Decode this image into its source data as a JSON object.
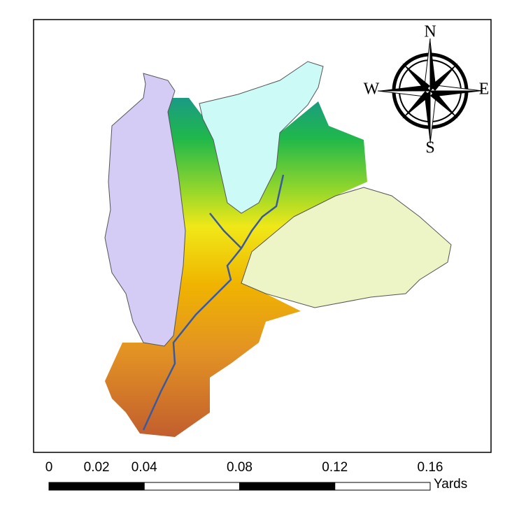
{
  "compass": {
    "north": "N",
    "south": "S",
    "east": "E",
    "west": "W"
  },
  "scale_bar": {
    "ticks": [
      0,
      0.02,
      0.04,
      0.08,
      0.12,
      0.16
    ],
    "unit": "Yards"
  }
}
